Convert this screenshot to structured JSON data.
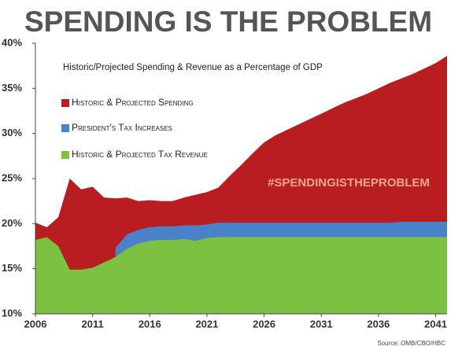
{
  "chart_data": {
    "type": "area",
    "title": "SPENDING IS THE PROBLEM",
    "subtitle": "Historic/Projected Spending & Revenue as a Percentage of GDP",
    "annotation": "#SPENDINGISTHEPROBLEM",
    "source": "Source: OMB/CBO/HBC",
    "x": [
      2006,
      2007,
      2008,
      2009,
      2010,
      2011,
      2012,
      2013,
      2014,
      2015,
      2016,
      2017,
      2018,
      2019,
      2020,
      2021,
      2022,
      2023,
      2024,
      2025,
      2026,
      2027,
      2028,
      2029,
      2030,
      2031,
      2032,
      2033,
      2034,
      2035,
      2036,
      2037,
      2038,
      2039,
      2040,
      2041,
      2042
    ],
    "series": [
      {
        "name": "Historic & Projected Spending",
        "color": "#b81d22",
        "values": [
          20.1,
          19.6,
          20.7,
          25.0,
          23.8,
          24.1,
          22.9,
          22.8,
          22.9,
          22.5,
          22.6,
          22.5,
          22.5,
          22.9,
          23.2,
          23.5,
          24.0,
          25.3,
          26.5,
          27.8,
          29.0,
          29.8,
          30.4,
          31.0,
          31.6,
          32.2,
          32.8,
          33.4,
          33.9,
          34.4,
          35.0,
          35.6,
          36.1,
          36.6,
          37.2,
          37.8,
          38.6
        ]
      },
      {
        "name": "President's Tax Increases",
        "color": "#4a82c9",
        "values": [
          null,
          null,
          null,
          null,
          null,
          null,
          null,
          1.0,
          1.6,
          1.5,
          1.5,
          1.5,
          1.5,
          1.5,
          1.7,
          1.5,
          1.6,
          1.6,
          1.6,
          1.6,
          1.6,
          1.6,
          1.6,
          1.6,
          1.6,
          1.6,
          1.6,
          1.6,
          1.6,
          1.6,
          1.6,
          1.6,
          1.7,
          1.7,
          1.7,
          1.7,
          1.7
        ]
      },
      {
        "name": "Historic & Projected Tax Revenue",
        "color": "#7cc142",
        "values": [
          18.2,
          18.5,
          17.5,
          14.9,
          14.9,
          15.1,
          15.7,
          16.3,
          17.2,
          17.8,
          18.1,
          18.2,
          18.2,
          18.3,
          18.1,
          18.4,
          18.5,
          18.5,
          18.5,
          18.5,
          18.5,
          18.5,
          18.5,
          18.5,
          18.5,
          18.5,
          18.5,
          18.5,
          18.5,
          18.5,
          18.5,
          18.5,
          18.5,
          18.5,
          18.5,
          18.5,
          18.5
        ]
      }
    ],
    "xlim": [
      2006,
      2042
    ],
    "xticks": [
      2006,
      2011,
      2016,
      2021,
      2026,
      2031,
      2036,
      2041
    ],
    "ylim": [
      10,
      40
    ],
    "yticks": [
      {
        "value": 10,
        "label": "10%"
      },
      {
        "value": 15,
        "label": "15%"
      },
      {
        "value": 20,
        "label": "20%"
      },
      {
        "value": 25,
        "label": "25%"
      },
      {
        "value": 30,
        "label": "30%"
      },
      {
        "value": 35,
        "label": "35%"
      },
      {
        "value": 40,
        "label": "40%"
      }
    ]
  }
}
